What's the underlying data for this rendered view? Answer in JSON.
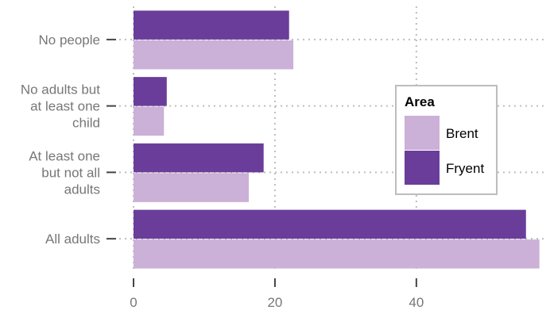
{
  "chart_data": {
    "type": "bar",
    "orientation": "horizontal",
    "categories": [
      [
        "No people"
      ],
      [
        "No adults but",
        "at least one",
        "child"
      ],
      [
        "At least one",
        "but not all",
        "adults"
      ],
      [
        "All adults"
      ]
    ],
    "series": [
      {
        "name": "Fryent",
        "color": "#6a3d9a",
        "values": [
          22,
          4.7,
          18.4,
          55.5
        ]
      },
      {
        "name": "Brent",
        "color": "#cbb0d7",
        "values": [
          22.6,
          4.3,
          16.3,
          57.4
        ]
      }
    ],
    "xlim": [
      0,
      58
    ],
    "x_ticks": [
      0,
      20,
      40
    ],
    "x_tick_labels": [
      "0",
      "20",
      "40"
    ],
    "grid": true,
    "legend": {
      "title": "Area",
      "placement": "right",
      "entries": [
        {
          "name": "Brent",
          "color": "#cbb0d7"
        },
        {
          "name": "Fryent",
          "color": "#6a3d9a"
        }
      ]
    },
    "title": "",
    "xlabel": "",
    "ylabel": ""
  }
}
